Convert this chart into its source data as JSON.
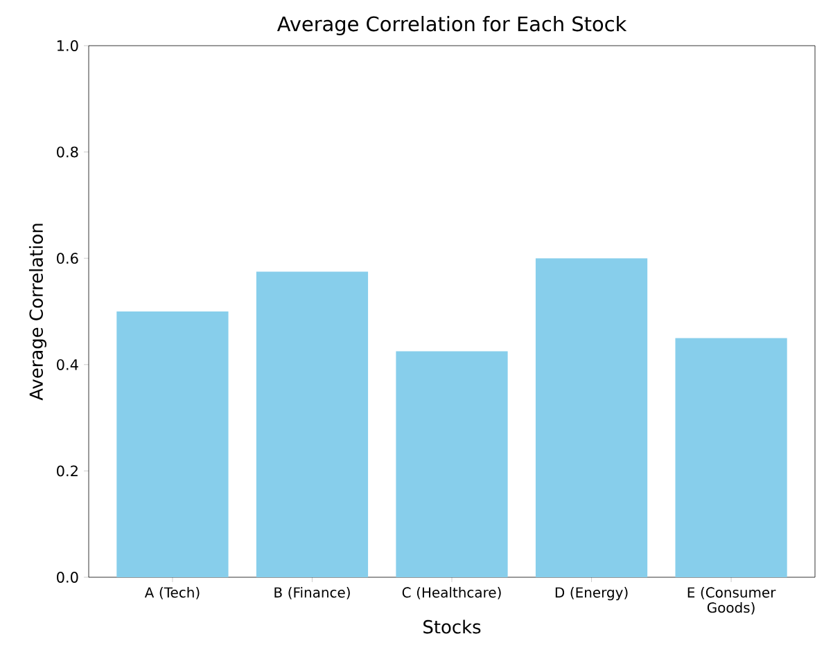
{
  "chart_data": {
    "type": "bar",
    "title": "Average Correlation for Each Stock",
    "xlabel": "Stocks",
    "ylabel": "Average Correlation",
    "categories": [
      "A (Tech)",
      "B (Finance)",
      "C (Healthcare)",
      "D (Energy)",
      "E (Consumer Goods)"
    ],
    "values": [
      0.5,
      0.575,
      0.425,
      0.6,
      0.45
    ],
    "color": "#87ceeb",
    "ylim": [
      0,
      1
    ],
    "yticks": [
      {
        "value": 0,
        "label": "0.0"
      },
      0.2,
      0.4,
      0.6,
      0.8,
      {
        "value": 1,
        "label": "1.0"
      }
    ],
    "grid": false
  }
}
